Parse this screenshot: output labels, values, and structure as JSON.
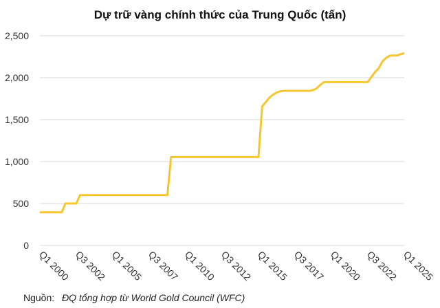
{
  "chart_data": {
    "type": "line",
    "title": "Dự trữ vàng chính thức của Trung Quốc (tấn)",
    "categories": [
      "Q1 2000",
      null,
      null,
      null,
      null,
      null,
      null,
      null,
      null,
      null,
      "Q3 2002",
      null,
      null,
      null,
      null,
      null,
      null,
      null,
      null,
      null,
      "Q1 2005",
      null,
      null,
      null,
      null,
      null,
      null,
      null,
      null,
      null,
      "Q3 2007",
      null,
      null,
      null,
      null,
      null,
      null,
      null,
      null,
      null,
      "Q1 2010",
      null,
      null,
      null,
      null,
      null,
      null,
      null,
      null,
      null,
      "Q3 2012",
      null,
      null,
      null,
      null,
      null,
      null,
      null,
      null,
      null,
      "Q1 2015",
      null,
      null,
      null,
      null,
      null,
      null,
      null,
      null,
      null,
      "Q3 2017",
      null,
      null,
      null,
      null,
      null,
      null,
      null,
      null,
      null,
      "Q1 2020",
      null,
      null,
      null,
      null,
      null,
      null,
      null,
      null,
      null,
      "Q3 2022",
      null,
      null,
      null,
      null,
      null,
      null,
      null,
      null,
      null,
      "Q1 2025"
    ],
    "values": [
      395,
      395,
      395,
      395,
      395,
      395,
      395,
      500,
      500,
      500,
      500,
      600,
      600,
      600,
      600,
      600,
      600,
      600,
      600,
      600,
      600,
      600,
      600,
      600,
      600,
      600,
      600,
      600,
      600,
      600,
      600,
      600,
      600,
      600,
      600,
      600,
      1054,
      1054,
      1054,
      1054,
      1054,
      1054,
      1054,
      1054,
      1054,
      1054,
      1054,
      1054,
      1054,
      1054,
      1054,
      1054,
      1054,
      1054,
      1054,
      1054,
      1054,
      1054,
      1054,
      1054,
      1054,
      1658,
      1709,
      1762,
      1798,
      1823,
      1838,
      1843,
      1843,
      1843,
      1843,
      1843,
      1843,
      1843,
      1843,
      1852,
      1874,
      1916,
      1948,
      1948,
      1948,
      1948,
      1948,
      1948,
      1948,
      1948,
      1948,
      1948,
      1948,
      1948,
      1948,
      2010,
      2068,
      2113,
      2192,
      2235,
      2262,
      2264,
      2264,
      2280,
      2292
    ],
    "color": "#f7c62f",
    "ylim": [
      0,
      2500
    ],
    "yticks": [
      0,
      {
        "value": 500,
        "label": "500"
      },
      {
        "value": 1000,
        "label": "1,000"
      },
      {
        "value": 1500,
        "label": "1,500"
      },
      {
        "value": 2000,
        "label": "2,000"
      },
      {
        "value": 2500,
        "label": "2,500"
      }
    ],
    "grid": true,
    "source_prefix": "Nguồn:",
    "source": "ĐQ tổng hợp từ World Gold Council (WFC)"
  }
}
